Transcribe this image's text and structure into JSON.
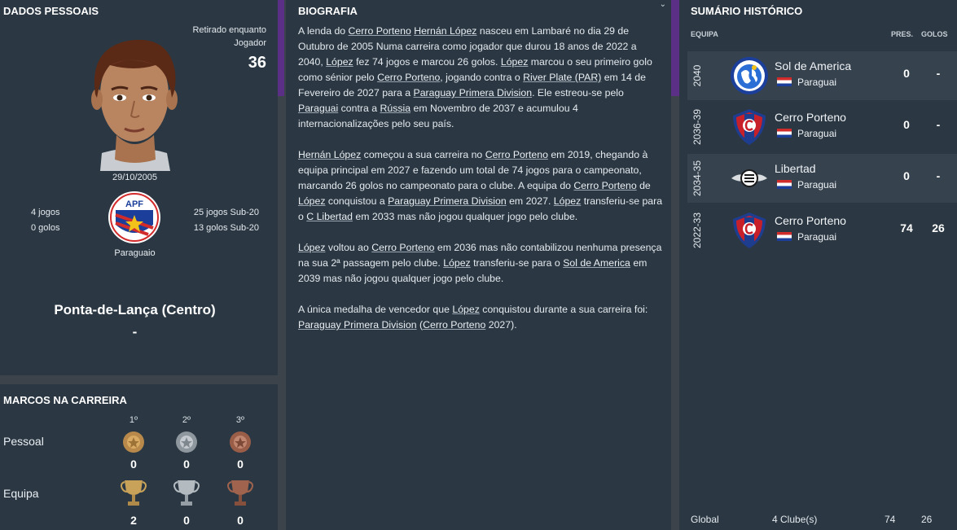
{
  "personal": {
    "title": "DADOS PESSOAIS",
    "retired": "Retirado enquanto Jogador",
    "age": "36",
    "dob": "29/10/2005",
    "senior_apps": "4 jogos",
    "senior_goals": "0 golos",
    "u20_apps": "25 jogos Sub-20",
    "u20_goals": "13 golos Sub-20",
    "nationality": "Paraguaio",
    "federation_badge": "APF",
    "position": "Ponta-de-Lança (Centro)",
    "role": "-"
  },
  "milestones": {
    "title": "MARCOS NA CARREIRA",
    "columns": [
      "1º",
      "2º",
      "3º"
    ],
    "personal_label": "Pessoal",
    "personal_values": [
      "0",
      "0",
      "0"
    ],
    "team_label": "Equipa",
    "team_values": [
      "2",
      "0",
      "0"
    ]
  },
  "bio": {
    "title": "BIOGRAFIA",
    "collapse_icon": "chevron-down-icon"
  },
  "history": {
    "title": "SUMÁRIO HISTÓRICO",
    "col_team": "EQUIPA",
    "col_apps": "PRES.",
    "col_goals": "GOLOS",
    "rows": [
      {
        "years": "2040",
        "club": "Sol de America",
        "nation": "Paraguai",
        "apps": "0",
        "goals": "-"
      },
      {
        "years": "2036-39",
        "club": "Cerro Porteno",
        "nation": "Paraguai",
        "apps": "0",
        "goals": "-"
      },
      {
        "years": "2034-35",
        "club": "Libertad",
        "nation": "Paraguai",
        "apps": "0",
        "goals": "-"
      },
      {
        "years": "2022-33",
        "club": "Cerro Porteno",
        "nation": "Paraguai",
        "apps": "74",
        "goals": "26"
      }
    ],
    "total_label": "Global",
    "total_clubs": "4 Clube(s)",
    "total_apps": "74",
    "total_goals": "26"
  },
  "colors": {
    "panel": "#2b3843",
    "background": "#3c434b",
    "accent_purple": "#5c2f86"
  }
}
